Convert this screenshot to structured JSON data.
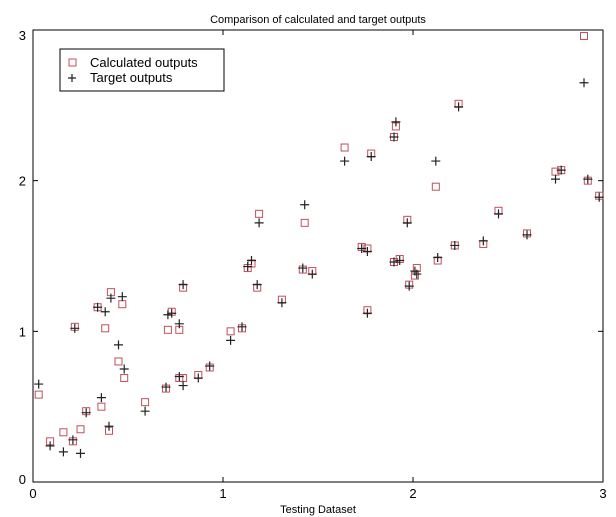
{
  "chart_data": {
    "type": "scatter",
    "title": "Comparison of calculated and target outputs",
    "xlabel": "Testing Dataset",
    "ylabel": "",
    "xlim": [
      0,
      3
    ],
    "ylim": [
      0,
      3
    ],
    "xticks": [
      0,
      1,
      2,
      3
    ],
    "yticks": [
      0,
      1,
      2,
      3
    ],
    "grid": false,
    "legend_position": "top-left",
    "series": [
      {
        "name": "Calculated outputs",
        "marker": "square",
        "color": "#c0505c",
        "points": [
          [
            0.03,
            0.58
          ],
          [
            0.09,
            0.27
          ],
          [
            0.16,
            0.33
          ],
          [
            0.21,
            0.27
          ],
          [
            0.22,
            1.03
          ],
          [
            0.25,
            0.35
          ],
          [
            0.28,
            0.47
          ],
          [
            0.34,
            1.16
          ],
          [
            0.36,
            0.5
          ],
          [
            0.38,
            1.02
          ],
          [
            0.4,
            0.34
          ],
          [
            0.41,
            1.26
          ],
          [
            0.45,
            0.8
          ],
          [
            0.47,
            1.18
          ],
          [
            0.48,
            0.69
          ],
          [
            0.59,
            0.53
          ],
          [
            0.7,
            0.62
          ],
          [
            0.71,
            1.01
          ],
          [
            0.73,
            1.13
          ],
          [
            0.77,
            0.69
          ],
          [
            0.77,
            1.01
          ],
          [
            0.79,
            1.29
          ],
          [
            0.79,
            0.69
          ],
          [
            0.87,
            0.71
          ],
          [
            0.93,
            0.76
          ],
          [
            1.04,
            1.0
          ],
          [
            1.1,
            1.02
          ],
          [
            1.13,
            1.42
          ],
          [
            1.15,
            1.45
          ],
          [
            1.18,
            1.29
          ],
          [
            1.19,
            1.78
          ],
          [
            1.31,
            1.21
          ],
          [
            1.42,
            1.41
          ],
          [
            1.43,
            1.72
          ],
          [
            1.47,
            1.4
          ],
          [
            1.64,
            2.22
          ],
          [
            1.73,
            1.56
          ],
          [
            1.76,
            1.55
          ],
          [
            1.76,
            1.14
          ],
          [
            1.78,
            2.18
          ],
          [
            1.9,
            2.29
          ],
          [
            1.9,
            1.46
          ],
          [
            1.91,
            2.36
          ],
          [
            1.93,
            1.48
          ],
          [
            1.97,
            1.74
          ],
          [
            1.98,
            1.31
          ],
          [
            2.01,
            1.37
          ],
          [
            2.02,
            1.42
          ],
          [
            2.12,
            1.96
          ],
          [
            2.13,
            1.47
          ],
          [
            2.22,
            1.57
          ],
          [
            2.24,
            2.51
          ],
          [
            2.37,
            1.58
          ],
          [
            2.45,
            1.8
          ],
          [
            2.6,
            1.65
          ],
          [
            2.75,
            2.06
          ],
          [
            2.78,
            2.07
          ],
          [
            2.9,
            2.96
          ],
          [
            2.92,
            2.0
          ],
          [
            2.98,
            1.9
          ]
        ]
      },
      {
        "name": "Target outputs",
        "marker": "plus",
        "color": "#222222",
        "points": [
          [
            0.03,
            0.65
          ],
          [
            0.09,
            0.24
          ],
          [
            0.16,
            0.2
          ],
          [
            0.21,
            0.28
          ],
          [
            0.22,
            1.02
          ],
          [
            0.25,
            0.19
          ],
          [
            0.28,
            0.46
          ],
          [
            0.34,
            1.16
          ],
          [
            0.36,
            0.56
          ],
          [
            0.38,
            1.13
          ],
          [
            0.4,
            0.37
          ],
          [
            0.41,
            1.22
          ],
          [
            0.45,
            0.91
          ],
          [
            0.47,
            1.23
          ],
          [
            0.48,
            0.75
          ],
          [
            0.59,
            0.47
          ],
          [
            0.7,
            0.63
          ],
          [
            0.71,
            1.11
          ],
          [
            0.73,
            1.12
          ],
          [
            0.77,
            0.7
          ],
          [
            0.77,
            1.05
          ],
          [
            0.79,
            1.31
          ],
          [
            0.79,
            0.64
          ],
          [
            0.87,
            0.69
          ],
          [
            0.93,
            0.77
          ],
          [
            1.04,
            0.94
          ],
          [
            1.1,
            1.03
          ],
          [
            1.13,
            1.43
          ],
          [
            1.15,
            1.47
          ],
          [
            1.18,
            1.31
          ],
          [
            1.19,
            1.72
          ],
          [
            1.31,
            1.19
          ],
          [
            1.42,
            1.42
          ],
          [
            1.43,
            1.84
          ],
          [
            1.47,
            1.38
          ],
          [
            1.64,
            2.13
          ],
          [
            1.73,
            1.55
          ],
          [
            1.76,
            1.53
          ],
          [
            1.76,
            1.12
          ],
          [
            1.78,
            2.16
          ],
          [
            1.9,
            2.29
          ],
          [
            1.9,
            1.46
          ],
          [
            1.91,
            2.39
          ],
          [
            1.93,
            1.47
          ],
          [
            1.97,
            1.72
          ],
          [
            1.98,
            1.3
          ],
          [
            2.01,
            1.4
          ],
          [
            2.02,
            1.38
          ],
          [
            2.12,
            2.13
          ],
          [
            2.13,
            1.49
          ],
          [
            2.22,
            1.57
          ],
          [
            2.24,
            2.49
          ],
          [
            2.37,
            1.6
          ],
          [
            2.45,
            1.78
          ],
          [
            2.6,
            1.64
          ],
          [
            2.75,
            2.01
          ],
          [
            2.78,
            2.07
          ],
          [
            2.9,
            2.65
          ],
          [
            2.92,
            2.01
          ],
          [
            2.98,
            1.89
          ]
        ]
      }
    ]
  }
}
